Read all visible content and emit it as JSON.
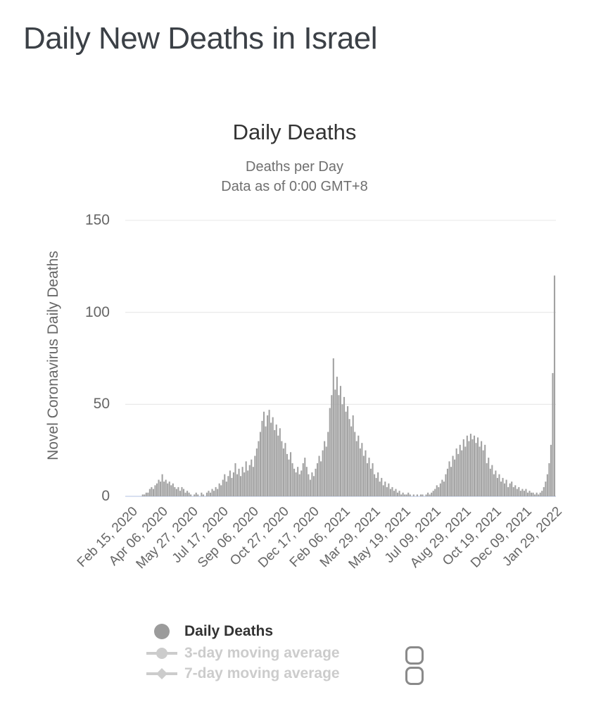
{
  "page": {
    "title": "Daily New Deaths in Israel"
  },
  "chart": {
    "title": "Daily Deaths",
    "subtitle_line1": "Deaths per Day",
    "subtitle_line2": "Data as of 0:00 GMT+8",
    "y_axis_title": "Novel Coronavirus Daily Deaths"
  },
  "legend": {
    "items": [
      {
        "label": "Daily Deaths",
        "marker": "circle",
        "enabled": true
      },
      {
        "label": "3-day moving average",
        "marker": "line-circle",
        "enabled": false
      },
      {
        "label": "7-day moving average",
        "marker": "line-diamond",
        "enabled": false
      }
    ]
  },
  "colors": {
    "bar": "#a2a2a2",
    "axis_line": "#ccd6eb",
    "gridline": "#e7e7e7",
    "page_title": "#3b4046",
    "chart_title": "#333333",
    "subtitle": "#6f6f6f",
    "axis_label": "#666666",
    "legend_active_text": "#333333",
    "legend_active_marker": "#9b9b9b",
    "legend_disabled": "#cccccc",
    "checkbox_border": "#8a8a8a"
  },
  "chart_data": {
    "type": "bar",
    "title": "Daily Deaths",
    "subtitle": [
      "Deaths per Day",
      "Data as of 0:00 GMT+8"
    ],
    "xlabel": "",
    "ylabel": "Novel Coronavirus Daily Deaths",
    "ylim": [
      0,
      150
    ],
    "yticks": [
      0,
      50,
      100,
      150
    ],
    "grid": true,
    "legend_position": "bottom",
    "series_name": "Daily Deaths",
    "x_tick_labels": [
      "Feb 15, 2020",
      "Apr 06, 2020",
      "May 27, 2020",
      "Jul 17, 2020",
      "Sep 06, 2020",
      "Oct 27, 2020",
      "Dec 17, 2020",
      "Feb 06, 2021",
      "Mar 29, 2021",
      "May 19, 2021",
      "Jul 09, 2021",
      "Aug 29, 2021",
      "Oct 19, 2021",
      "Dec 09, 2021",
      "Jan 29, 2022"
    ],
    "x_start_label": "Feb 15, 2020",
    "x_end_label": "Jan 29, 2022",
    "tick_interval_days": 51,
    "total_days": 714,
    "sample_step_days": 3,
    "values": [
      0,
      0,
      0,
      0,
      0,
      0,
      0,
      1,
      1,
      2,
      2,
      4,
      5,
      4,
      6,
      7,
      9,
      8,
      12,
      8,
      9,
      7,
      8,
      6,
      7,
      5,
      4,
      5,
      3,
      5,
      4,
      2,
      3,
      2,
      1,
      0,
      1,
      2,
      1,
      0,
      2,
      1,
      0,
      2,
      3,
      2,
      4,
      3,
      5,
      4,
      7,
      6,
      9,
      12,
      8,
      11,
      14,
      10,
      13,
      18,
      12,
      15,
      11,
      16,
      13,
      19,
      14,
      17,
      20,
      16,
      22,
      26,
      30,
      35,
      41,
      46,
      38,
      44,
      47,
      40,
      43,
      36,
      39,
      33,
      37,
      30,
      26,
      29,
      23,
      20,
      24,
      18,
      15,
      13,
      16,
      12,
      14,
      18,
      21,
      16,
      12,
      9,
      13,
      11,
      15,
      18,
      22,
      19,
      25,
      30,
      27,
      35,
      48,
      55,
      75,
      58,
      65,
      55,
      60,
      50,
      54,
      46,
      49,
      42,
      38,
      44,
      35,
      30,
      33,
      26,
      29,
      22,
      25,
      18,
      21,
      15,
      18,
      12,
      10,
      13,
      8,
      10,
      6,
      8,
      5,
      7,
      4,
      5,
      3,
      4,
      2,
      3,
      1,
      2,
      1,
      1,
      2,
      1,
      0,
      1,
      0,
      1,
      0,
      1,
      1,
      0,
      1,
      2,
      1,
      2,
      3,
      4,
      6,
      5,
      7,
      9,
      8,
      12,
      15,
      19,
      16,
      22,
      20,
      26,
      23,
      28,
      25,
      31,
      27,
      33,
      30,
      34,
      31,
      33,
      29,
      32,
      27,
      30,
      25,
      28,
      18,
      21,
      15,
      17,
      12,
      14,
      10,
      12,
      8,
      10,
      7,
      9,
      5,
      7,
      8,
      5,
      6,
      4,
      5,
      3,
      4,
      3,
      4,
      2,
      3,
      2,
      2,
      1,
      2,
      1,
      2,
      3,
      5,
      8,
      12,
      18,
      28,
      67,
      120
    ]
  }
}
